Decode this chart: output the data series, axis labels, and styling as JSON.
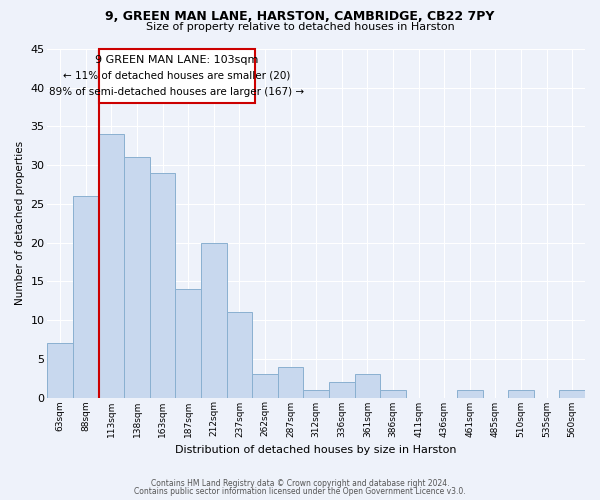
{
  "title1": "9, GREEN MAN LANE, HARSTON, CAMBRIDGE, CB22 7PY",
  "title2": "Size of property relative to detached houses in Harston",
  "xlabel": "Distribution of detached houses by size in Harston",
  "ylabel": "Number of detached properties",
  "bar_color": "#c8d8ee",
  "bar_edge_color": "#8ab0d0",
  "categories": [
    "63sqm",
    "88sqm",
    "113sqm",
    "138sqm",
    "163sqm",
    "187sqm",
    "212sqm",
    "237sqm",
    "262sqm",
    "287sqm",
    "312sqm",
    "336sqm",
    "361sqm",
    "386sqm",
    "411sqm",
    "436sqm",
    "461sqm",
    "485sqm",
    "510sqm",
    "535sqm",
    "560sqm"
  ],
  "values": [
    7,
    26,
    34,
    31,
    29,
    14,
    20,
    11,
    3,
    4,
    1,
    2,
    3,
    1,
    0,
    0,
    1,
    0,
    1,
    0,
    1
  ],
  "ylim": [
    0,
    45
  ],
  "yticks": [
    0,
    5,
    10,
    15,
    20,
    25,
    30,
    35,
    40,
    45
  ],
  "property_line_label": "9 GREEN MAN LANE: 103sqm",
  "annotation_line2": "← 11% of detached houses are smaller (20)",
  "annotation_line3": "89% of semi-detached houses are larger (167) →",
  "annotation_box_color": "#ffffff",
  "annotation_box_edge": "#cc0000",
  "vline_color": "#cc0000",
  "footer1": "Contains HM Land Registry data © Crown copyright and database right 2024.",
  "footer2": "Contains public sector information licensed under the Open Government Licence v3.0.",
  "background_color": "#eef2fa",
  "grid_color": "#ffffff"
}
